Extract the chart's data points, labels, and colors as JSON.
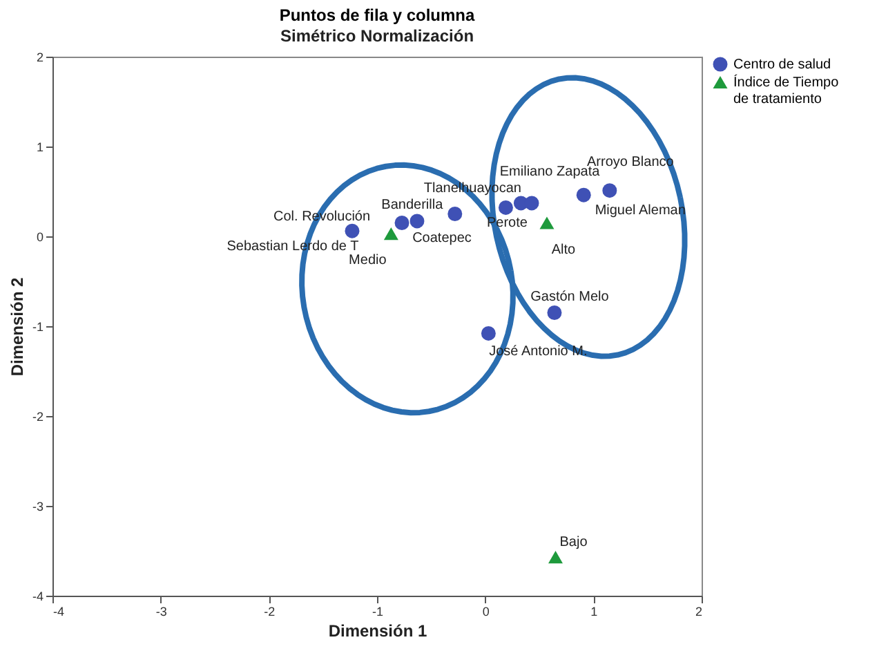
{
  "chart_data": {
    "type": "scatter",
    "title": "Puntos de fila y columna",
    "subtitle": "Simétrico Normalización",
    "xlabel": "Dimensión 1",
    "ylabel": "Dimensión 2",
    "series": [
      {
        "name": "Centro de salud",
        "color": "#3f51b5",
        "marker": "circle",
        "x": [
          -1.23,
          -0.77,
          -0.63,
          -0.28,
          0.33,
          0.43,
          0.19,
          0.91,
          1.15,
          0.64,
          0.03
        ],
        "values": [
          0.06,
          0.15,
          0.17,
          0.25,
          0.37,
          0.37,
          0.32,
          0.46,
          0.51,
          -0.85,
          -1.08
        ]
      },
      {
        "name": "Índice de Tiempo de tratamiento",
        "color": "#1e9a3c",
        "marker": "triangle",
        "x": [
          -0.87,
          0.57,
          0.65
        ],
        "values": [
          0.03,
          0.15,
          -3.57
        ]
      }
    ],
    "annotations": [
      {
        "text": "Sebastian Lerdo de T",
        "x": -1.23,
        "y": 0.06
      },
      {
        "text": "Col. Revolución",
        "x": -0.77,
        "y": 0.15
      },
      {
        "text": "Coatepec",
        "x": -0.63,
        "y": 0.17
      },
      {
        "text": "Banderilla",
        "x": -0.28,
        "y": 0.25
      },
      {
        "text": "Tlanelhuayocan",
        "x": 0.33,
        "y": 0.37
      },
      {
        "text": "Emiliano Zapata",
        "x": 0.43,
        "y": 0.37
      },
      {
        "text": "Perote",
        "x": 0.19,
        "y": 0.32
      },
      {
        "text": "Miguel Aleman",
        "x": 0.91,
        "y": 0.46
      },
      {
        "text": "Arroyo Blanco",
        "x": 1.15,
        "y": 0.51
      },
      {
        "text": "Gastón Melo",
        "x": 0.64,
        "y": -0.85
      },
      {
        "text": "José Antonio M.",
        "x": 0.03,
        "y": -1.08
      },
      {
        "text": "Medio",
        "x": -0.87,
        "y": 0.03
      },
      {
        "text": "Alto",
        "x": 0.57,
        "y": 0.15
      },
      {
        "text": "Bajo",
        "x": 0.65,
        "y": -3.57
      }
    ],
    "xlim": [
      -4,
      2
    ],
    "ylim": [
      -4,
      2
    ],
    "xticks": [
      -4,
      -3,
      -2,
      -1,
      0,
      1,
      2
    ],
    "yticks": [
      -4,
      -3,
      -2,
      -1,
      0,
      1,
      2
    ],
    "grid": false,
    "legend": "top right"
  }
}
